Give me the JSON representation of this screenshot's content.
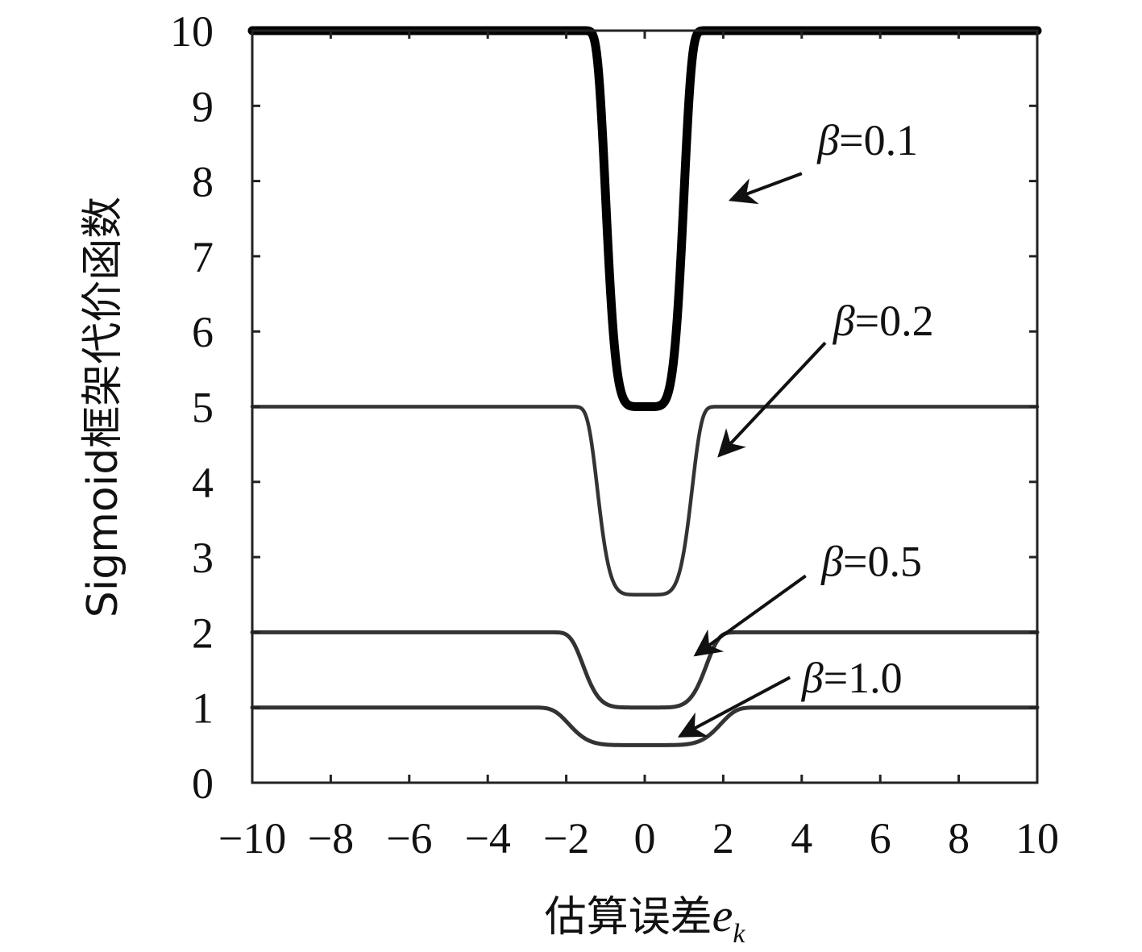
{
  "chart_data": {
    "type": "line",
    "xlabel_text": "估算误差",
    "xlabel_var": "e",
    "xlabel_sub": "k",
    "ylabel": "Sigmoid框架代价函数",
    "xlim": [
      -10,
      10
    ],
    "ylim": [
      0,
      10
    ],
    "xticks": [
      -10,
      -8,
      -6,
      -4,
      -2,
      0,
      2,
      4,
      6,
      8,
      10
    ],
    "xtick_labels": [
      "−10",
      "−8",
      "−6",
      "−4",
      "−2",
      "0",
      "2",
      "4",
      "6",
      "8",
      "10"
    ],
    "yticks": [
      0,
      1,
      2,
      3,
      4,
      5,
      6,
      7,
      8,
      9,
      10
    ],
    "ytick_labels": [
      "0",
      "1",
      "2",
      "3",
      "4",
      "5",
      "6",
      "7",
      "8",
      "9",
      "10"
    ],
    "grid": false,
    "series": [
      {
        "beta": 0.1,
        "label_symbol": "β",
        "label_value": "=0.1",
        "color": "#000000",
        "width": 11,
        "label_pos": [
          4.4,
          8.35
        ],
        "arrow_from": [
          4.0,
          8.1
        ],
        "arrow_to": [
          2.2,
          7.75
        ]
      },
      {
        "beta": 0.2,
        "label_symbol": "β",
        "label_value": "=0.2",
        "color": "#333333",
        "width": 4.5,
        "label_pos": [
          4.8,
          5.95
        ],
        "arrow_from": [
          4.6,
          5.85
        ],
        "arrow_to": [
          1.9,
          4.35
        ]
      },
      {
        "beta": 0.5,
        "label_symbol": "β",
        "label_value": "=0.5",
        "color": "#333333",
        "width": 5,
        "label_pos": [
          4.5,
          2.75
        ],
        "arrow_from": [
          4.1,
          2.75
        ],
        "arrow_to": [
          1.3,
          1.7
        ]
      },
      {
        "beta": 1.0,
        "label_symbol": "β",
        "label_value": "=1.0",
        "color": "#333333",
        "width": 5,
        "label_pos": [
          4.0,
          1.2
        ],
        "arrow_from": [
          3.7,
          1.4
        ],
        "arrow_to": [
          0.9,
          0.62
        ]
      }
    ]
  }
}
